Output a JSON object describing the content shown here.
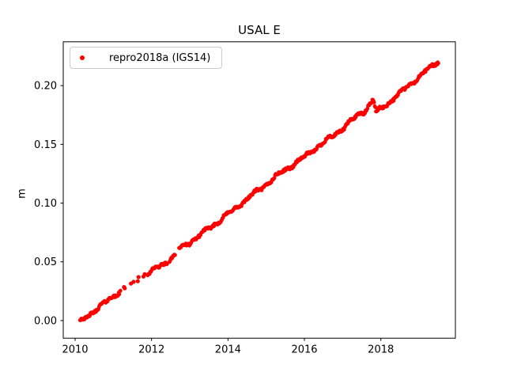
{
  "figure": {
    "title": "USAL E",
    "ylabel": "m",
    "background": "#ffffff",
    "axis_color": "#000000",
    "tick_label_color": "#000000"
  },
  "legend": {
    "label": "repro2018a (IGS14)",
    "marker_color": "#ff0000",
    "border_color": "#cccccc"
  },
  "chart_data": {
    "type": "scatter",
    "title": "USAL E",
    "xlabel": "",
    "ylabel": "m",
    "series_name": "repro2018a (IGS14)",
    "legend_position": "upper left",
    "grid": false,
    "marker": {
      "shape": "circle",
      "color": "#ff0000",
      "radius_px": 2.4
    },
    "xlim": [
      2009.69,
      2019.95
    ],
    "ylim": [
      -0.015,
      0.2373
    ],
    "xtick_values": [
      2010,
      2012,
      2014,
      2016,
      2018
    ],
    "xtick_labels": [
      "2010",
      "2012",
      "2014",
      "2016",
      "2018"
    ],
    "ytick_values": [
      0.0,
      0.05,
      0.1,
      0.15,
      0.2
    ],
    "ytick_labels": [
      "0.00",
      "0.05",
      "0.10",
      "0.15",
      "0.20"
    ],
    "trend_anchors": [
      [
        2010.13,
        -0.001
      ],
      [
        2010.3,
        0.003
      ],
      [
        2010.5,
        0.0085
      ],
      [
        2010.7,
        0.013
      ],
      [
        2010.9,
        0.018
      ],
      [
        2011.05,
        0.022
      ],
      [
        2011.18,
        0.025
      ],
      [
        2011.28,
        0.0285
      ],
      [
        2011.65,
        0.034
      ],
      [
        2011.9,
        0.0395
      ],
      [
        2012.1,
        0.044
      ],
      [
        2012.3,
        0.048
      ],
      [
        2012.5,
        0.0525
      ],
      [
        2012.62,
        0.056
      ],
      [
        2012.72,
        0.061
      ],
      [
        2012.9,
        0.0645
      ],
      [
        2013.2,
        0.071
      ],
      [
        2013.5,
        0.0785
      ],
      [
        2014.0,
        0.0905
      ],
      [
        2014.5,
        0.1035
      ],
      [
        2015.0,
        0.116
      ],
      [
        2015.5,
        0.1285
      ],
      [
        2016.0,
        0.139
      ],
      [
        2016.3,
        0.147
      ],
      [
        2016.7,
        0.156
      ],
      [
        2017.0,
        0.1635
      ],
      [
        2017.3,
        0.172
      ],
      [
        2017.45,
        0.1765
      ],
      [
        2017.55,
        0.1775
      ],
      [
        2017.8,
        0.188
      ],
      [
        2017.88,
        0.177
      ],
      [
        2018.05,
        0.1815
      ],
      [
        2018.5,
        0.1935
      ],
      [
        2019.0,
        0.2075
      ],
      [
        2019.3,
        0.2155
      ],
      [
        2019.45,
        0.2195
      ],
      [
        2019.52,
        0.2215
      ]
    ],
    "dense_segments": [
      [
        2010.13,
        2011.2
      ],
      [
        2011.9,
        2012.42
      ],
      [
        2012.47,
        2012.62
      ],
      [
        2012.72,
        2019.52
      ]
    ],
    "sparse_points": [
      [
        2011.28,
        0.0285
      ],
      [
        2011.3,
        0.0275
      ],
      [
        2011.46,
        0.0315
      ],
      [
        2011.53,
        0.033
      ],
      [
        2011.64,
        0.0335
      ],
      [
        2011.66,
        0.037
      ],
      [
        2011.79,
        0.0375
      ],
      [
        2011.82,
        0.0395
      ]
    ],
    "sample_step_years": 0.016,
    "jitter": {
      "seed": 42,
      "random_amp": 0.0011,
      "wave1_amp": 0.0012,
      "wave1_freq": 9.7,
      "wave2_amp": 0.0007,
      "wave2_freq": 23.3
    }
  }
}
